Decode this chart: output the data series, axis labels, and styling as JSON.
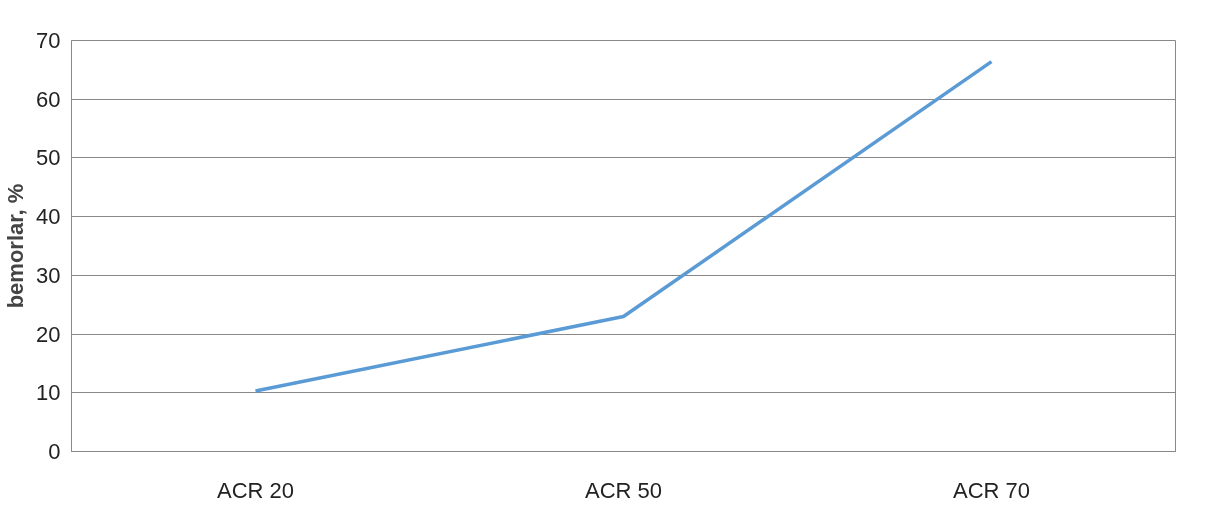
{
  "chart_data": {
    "type": "line",
    "ylabel": "bemorlar, %",
    "categories": [
      "ACR 20",
      "ACR 50",
      "ACR 70"
    ],
    "series": [
      {
        "color": "#5b9bd5",
        "values": [
          10.3,
          23,
          66.4
        ]
      }
    ],
    "ylim": [
      0,
      70
    ],
    "yticks": [
      0,
      10,
      20,
      30,
      40,
      50,
      60,
      70
    ],
    "grid": "y"
  }
}
